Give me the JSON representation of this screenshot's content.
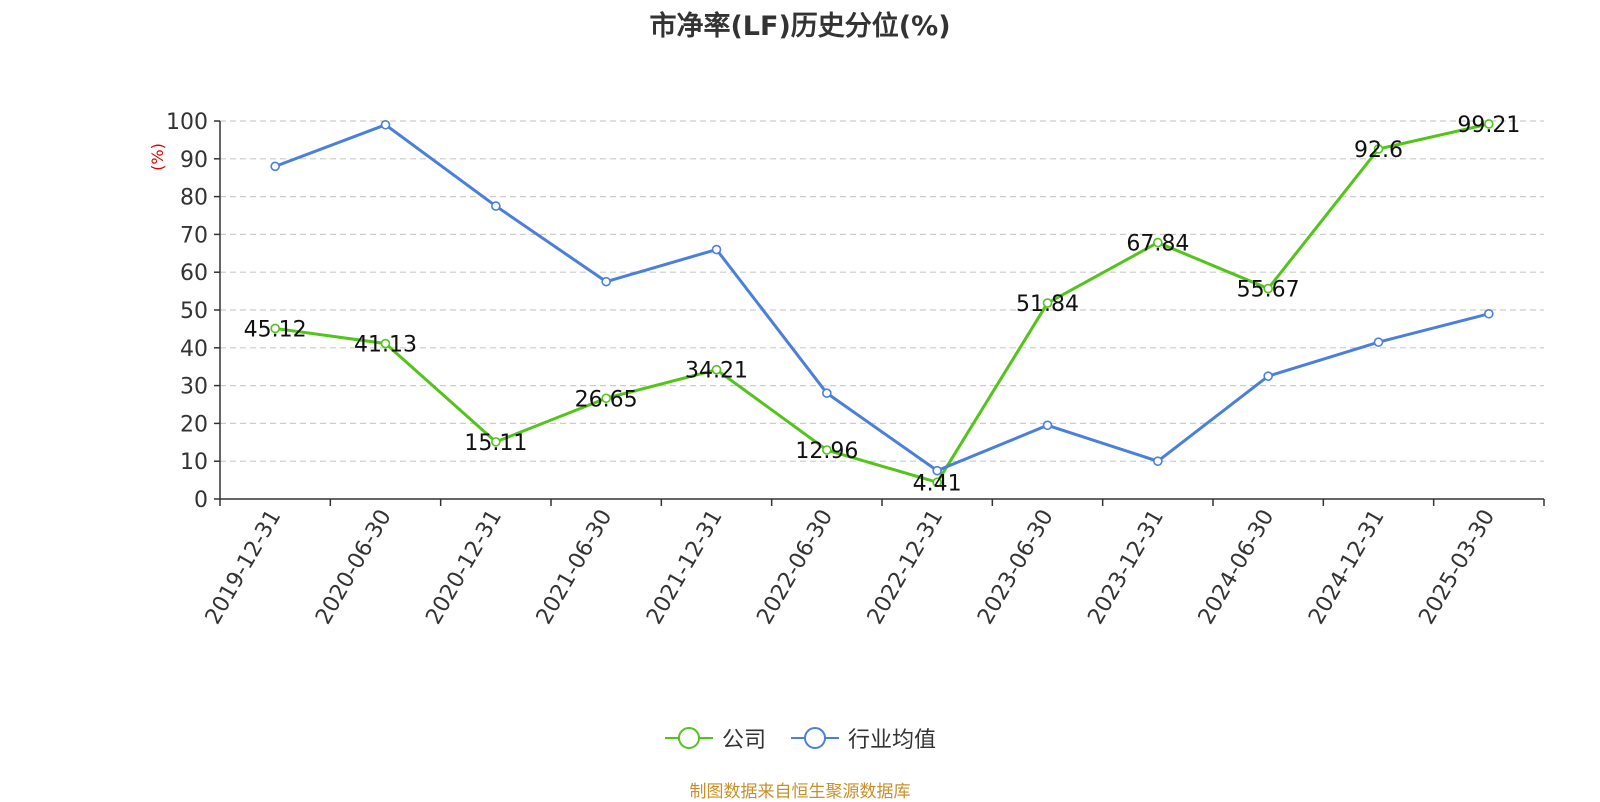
{
  "chart_data": {
    "type": "line",
    "title": "市净率(LF)历史分位(%)",
    "ylabel": "(%)",
    "xlabel": "",
    "categories": [
      "2019-12-31",
      "2020-06-30",
      "2020-12-31",
      "2021-06-30",
      "2021-12-31",
      "2022-06-30",
      "2022-12-31",
      "2023-06-30",
      "2023-12-31",
      "2024-06-30",
      "2024-12-31",
      "2025-03-30"
    ],
    "ylim": [
      0,
      100
    ],
    "yticks": [
      "0",
      "10",
      "20",
      "30",
      "40",
      "50",
      "60",
      "70",
      "80",
      "90",
      "100"
    ],
    "grid": true,
    "legend_position": "bottom",
    "series": [
      {
        "name": "公司",
        "color": "#52c41a",
        "values": [
          45.12,
          41.13,
          15.11,
          26.65,
          34.21,
          12.96,
          4.41,
          51.84,
          67.84,
          55.67,
          92.6,
          99.21
        ],
        "labels": [
          "45.12",
          "41.13",
          "15.11",
          "26.65",
          "34.21",
          "12.96",
          "4.41",
          "51.84",
          "67.84",
          "55.67",
          "92.6",
          "99.21"
        ]
      },
      {
        "name": "行业均值",
        "color": "#4a7fdb",
        "values": [
          88,
          99,
          77.5,
          57.5,
          66,
          28,
          7.5,
          19.5,
          10,
          32.5,
          41.5,
          49
        ]
      }
    ]
  },
  "legend": {
    "company": "公司",
    "industry": "行业均值"
  },
  "footer": {
    "source": "制图数据来自恒生聚源数据库"
  }
}
